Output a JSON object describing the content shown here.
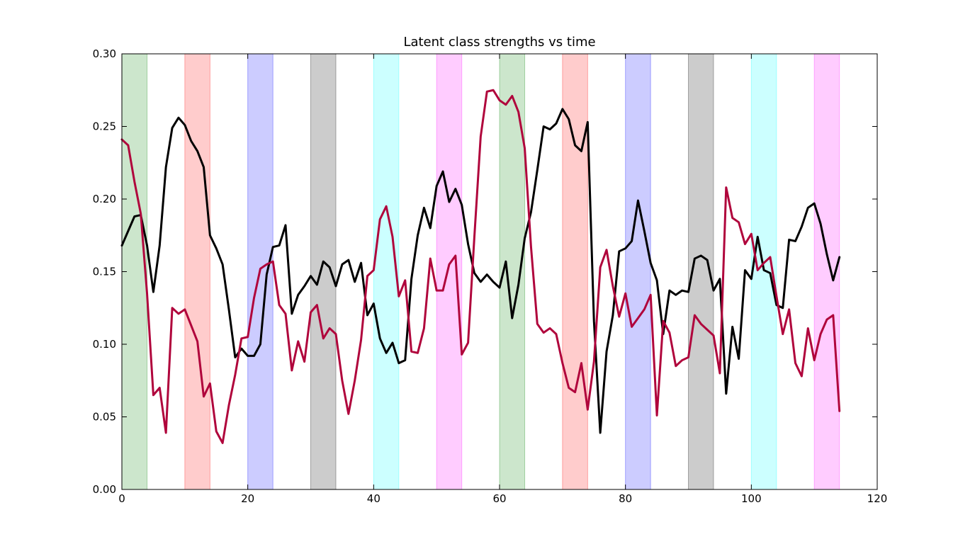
{
  "chart_data": {
    "type": "line",
    "title": "Latent class strengths vs time",
    "xlabel": "",
    "ylabel": "",
    "xlim": [
      0,
      120
    ],
    "ylim": [
      0,
      0.3
    ],
    "grid": false,
    "x_ticks": [
      "0",
      "20",
      "40",
      "60",
      "80",
      "100",
      "120"
    ],
    "y_ticks": [
      "0.00",
      "0.05",
      "0.10",
      "0.15",
      "0.20",
      "0.25",
      "0.30"
    ],
    "x_tick_values": [
      0,
      20,
      40,
      60,
      80,
      100,
      120
    ],
    "y_tick_values": [
      0,
      0.05,
      0.1,
      0.15,
      0.2,
      0.25,
      0.3
    ],
    "shaded_bands": [
      {
        "start": 0,
        "end": 4,
        "color": "#008000"
      },
      {
        "start": 10,
        "end": 14,
        "color": "#ff0000"
      },
      {
        "start": 20,
        "end": 24,
        "color": "#0000ff"
      },
      {
        "start": 30,
        "end": 34,
        "color": "#000000"
      },
      {
        "start": 40,
        "end": 44,
        "color": "#00ffff"
      },
      {
        "start": 50,
        "end": 54,
        "color": "#ff00ff"
      },
      {
        "start": 60,
        "end": 64,
        "color": "#008000"
      },
      {
        "start": 70,
        "end": 74,
        "color": "#ff0000"
      },
      {
        "start": 80,
        "end": 84,
        "color": "#0000ff"
      },
      {
        "start": 90,
        "end": 94,
        "color": "#000000"
      },
      {
        "start": 100,
        "end": 104,
        "color": "#00ffff"
      },
      {
        "start": 110,
        "end": 114,
        "color": "#ff00ff"
      }
    ],
    "series": [
      {
        "color": "#000000",
        "x": [
          0,
          1,
          2,
          3,
          4,
          5,
          6,
          7,
          8,
          9,
          10,
          11,
          12,
          13,
          14,
          15,
          16,
          17,
          18,
          19,
          20,
          21,
          22,
          23,
          24,
          25,
          26,
          27,
          28,
          29,
          30,
          31,
          32,
          33,
          34,
          35,
          36,
          37,
          38,
          39,
          40,
          41,
          42,
          43,
          44,
          45,
          46,
          47,
          48,
          49,
          50,
          51,
          52,
          53,
          54,
          55,
          56,
          57,
          58,
          59,
          60,
          61,
          62,
          63,
          64,
          65,
          66,
          67,
          68,
          69,
          70,
          71,
          72,
          73,
          74,
          75,
          76,
          77,
          78,
          79,
          80,
          81,
          82,
          83,
          84,
          85,
          86,
          87,
          88,
          89,
          90,
          91,
          92,
          93,
          94,
          95,
          96,
          97,
          98,
          99,
          100,
          101,
          102,
          103,
          104,
          105,
          106,
          107,
          108,
          109,
          110,
          111,
          112,
          113,
          114
        ],
        "values": [
          0.168,
          0.178,
          0.188,
          0.189,
          0.168,
          0.136,
          0.168,
          0.222,
          0.249,
          0.256,
          0.251,
          0.24,
          0.233,
          0.222,
          0.175,
          0.166,
          0.155,
          0.124,
          0.091,
          0.097,
          0.092,
          0.092,
          0.1,
          0.148,
          0.167,
          0.168,
          0.182,
          0.121,
          0.134,
          0.14,
          0.147,
          0.141,
          0.157,
          0.153,
          0.14,
          0.155,
          0.158,
          0.143,
          0.156,
          0.12,
          0.128,
          0.104,
          0.094,
          0.101,
          0.087,
          0.089,
          0.145,
          0.175,
          0.194,
          0.18,
          0.209,
          0.219,
          0.198,
          0.207,
          0.196,
          0.169,
          0.149,
          0.143,
          0.148,
          0.143,
          0.139,
          0.157,
          0.118,
          0.141,
          0.173,
          0.191,
          0.22,
          0.25,
          0.248,
          0.252,
          0.262,
          0.255,
          0.237,
          0.233,
          0.253,
          0.116,
          0.039,
          0.095,
          0.12,
          0.164,
          0.166,
          0.171,
          0.199,
          0.178,
          0.156,
          0.144,
          0.107,
          0.137,
          0.134,
          0.137,
          0.136,
          0.159,
          0.161,
          0.158,
          0.137,
          0.145,
          0.066,
          0.112,
          0.09,
          0.151,
          0.145,
          0.174,
          0.151,
          0.149,
          0.127,
          0.125,
          0.172,
          0.171,
          0.181,
          0.194,
          0.197,
          0.183,
          0.162,
          0.144,
          0.16
        ]
      },
      {
        "color": "#b0053c",
        "x": [
          0,
          1,
          2,
          3,
          4,
          5,
          6,
          7,
          8,
          9,
          10,
          11,
          12,
          13,
          14,
          15,
          16,
          17,
          18,
          19,
          20,
          21,
          22,
          23,
          24,
          25,
          26,
          27,
          28,
          29,
          30,
          31,
          32,
          33,
          34,
          35,
          36,
          37,
          38,
          39,
          40,
          41,
          42,
          43,
          44,
          45,
          46,
          47,
          48,
          49,
          50,
          51,
          52,
          53,
          54,
          55,
          56,
          57,
          58,
          59,
          60,
          61,
          62,
          63,
          64,
          65,
          66,
          67,
          68,
          69,
          70,
          71,
          72,
          73,
          74,
          75,
          76,
          77,
          78,
          79,
          80,
          81,
          82,
          83,
          84,
          85,
          86,
          87,
          88,
          89,
          90,
          91,
          92,
          93,
          94,
          95,
          96,
          97,
          98,
          99,
          100,
          101,
          102,
          103,
          104,
          105,
          106,
          107,
          108,
          109,
          110,
          111,
          112,
          113,
          114
        ],
        "values": [
          0.241,
          0.237,
          0.212,
          0.19,
          0.135,
          0.065,
          0.07,
          0.039,
          0.125,
          0.121,
          0.124,
          0.113,
          0.102,
          0.064,
          0.073,
          0.04,
          0.032,
          0.058,
          0.079,
          0.104,
          0.105,
          0.132,
          0.152,
          0.155,
          0.157,
          0.127,
          0.121,
          0.082,
          0.102,
          0.088,
          0.122,
          0.127,
          0.104,
          0.111,
          0.107,
          0.075,
          0.052,
          0.075,
          0.103,
          0.147,
          0.151,
          0.186,
          0.195,
          0.174,
          0.133,
          0.144,
          0.095,
          0.094,
          0.111,
          0.159,
          0.137,
          0.137,
          0.155,
          0.161,
          0.093,
          0.101,
          0.174,
          0.243,
          0.274,
          0.275,
          0.268,
          0.265,
          0.271,
          0.26,
          0.235,
          0.167,
          0.114,
          0.108,
          0.111,
          0.107,
          0.087,
          0.07,
          0.067,
          0.087,
          0.055,
          0.088,
          0.153,
          0.165,
          0.14,
          0.119,
          0.135,
          0.112,
          0.118,
          0.124,
          0.134,
          0.051,
          0.116,
          0.108,
          0.085,
          0.089,
          0.091,
          0.12,
          0.114,
          0.11,
          0.106,
          0.08,
          0.208,
          0.187,
          0.184,
          0.169,
          0.176,
          0.151,
          0.156,
          0.16,
          0.133,
          0.107,
          0.124,
          0.087,
          0.078,
          0.111,
          0.089,
          0.107,
          0.117,
          0.12,
          0.054
        ]
      }
    ]
  }
}
